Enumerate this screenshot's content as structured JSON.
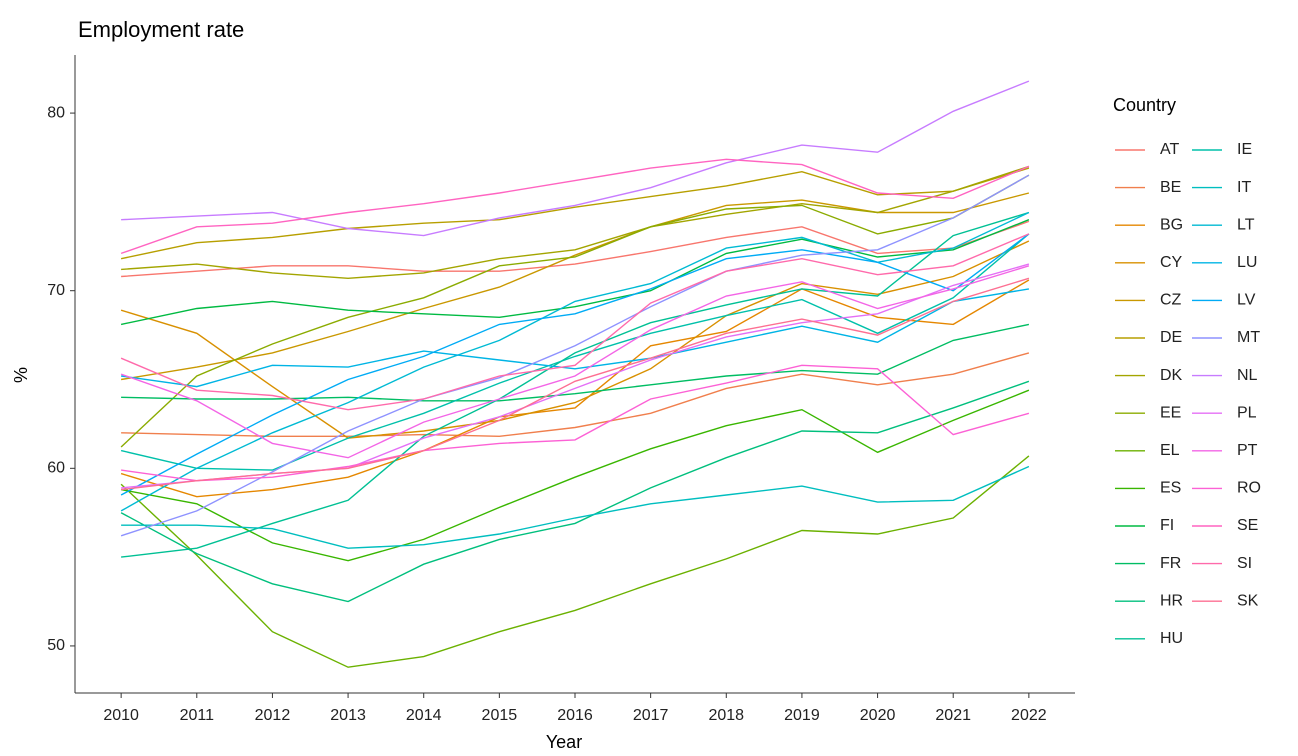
{
  "chart_data": {
    "type": "line",
    "title": "Employment rate",
    "x_label": "Year",
    "y_label": "%",
    "legend_title": "Country",
    "x": [
      2010,
      2011,
      2012,
      2013,
      2014,
      2015,
      2016,
      2017,
      2018,
      2019,
      2020,
      2021,
      2022
    ],
    "xlim": [
      2009.39,
      2022.61
    ],
    "xticks": [
      2010,
      2011,
      2012,
      2013,
      2014,
      2015,
      2016,
      2017,
      2018,
      2019,
      2020,
      2021,
      2022
    ],
    "ylim": [
      47.35,
      83.27
    ],
    "yticks": [
      50,
      60,
      70,
      80
    ],
    "series": [
      {
        "name": "AT",
        "color": "#F8766D",
        "values": [
          70.8,
          71.1,
          71.4,
          71.4,
          71.1,
          71.1,
          71.5,
          72.2,
          73.0,
          73.6,
          72.1,
          72.4,
          73.9
        ]
      },
      {
        "name": "BE",
        "color": "#F07F4D",
        "values": [
          62.0,
          61.9,
          61.8,
          61.8,
          61.9,
          61.8,
          62.3,
          63.1,
          64.5,
          65.3,
          64.7,
          65.3,
          66.5
        ]
      },
      {
        "name": "BG",
        "color": "#E58700",
        "values": [
          59.7,
          58.4,
          58.8,
          59.5,
          61.0,
          62.9,
          63.4,
          66.9,
          67.7,
          70.1,
          68.5,
          68.1,
          70.6
        ]
      },
      {
        "name": "CY",
        "color": "#D89000",
        "values": [
          68.9,
          67.6,
          64.6,
          61.7,
          62.1,
          62.7,
          63.7,
          65.6,
          68.6,
          70.4,
          69.8,
          70.8,
          72.8
        ]
      },
      {
        "name": "CZ",
        "color": "#C99800",
        "values": [
          65.0,
          65.7,
          66.5,
          67.7,
          69.0,
          70.2,
          72.0,
          73.6,
          74.8,
          75.1,
          74.4,
          74.4,
          75.5
        ]
      },
      {
        "name": "DE",
        "color": "#B79F00",
        "values": [
          71.8,
          72.7,
          73.0,
          73.5,
          73.8,
          74.0,
          74.7,
          75.3,
          75.9,
          76.7,
          75.4,
          75.6,
          76.9
        ]
      },
      {
        "name": "DK",
        "color": "#A3A500",
        "values": [
          71.2,
          71.5,
          71.0,
          70.7,
          71.0,
          71.8,
          72.3,
          73.6,
          74.3,
          74.9,
          74.4,
          75.6,
          77.0
        ]
      },
      {
        "name": "EE",
        "color": "#8BAB00",
        "values": [
          61.2,
          65.2,
          67.0,
          68.5,
          69.6,
          71.4,
          71.9,
          73.6,
          74.6,
          74.8,
          73.2,
          74.1,
          76.5
        ]
      },
      {
        "name": "EL",
        "color": "#6BB100",
        "values": [
          59.1,
          55.1,
          50.8,
          48.8,
          49.4,
          50.8,
          52.0,
          53.5,
          54.9,
          56.5,
          56.3,
          57.2,
          60.7
        ]
      },
      {
        "name": "ES",
        "color": "#39B600",
        "values": [
          58.8,
          58.0,
          55.8,
          54.8,
          56.0,
          57.8,
          59.5,
          61.1,
          62.4,
          63.3,
          60.9,
          62.7,
          64.4
        ]
      },
      {
        "name": "FI",
        "color": "#00BA42",
        "values": [
          68.1,
          69.0,
          69.4,
          68.9,
          68.7,
          68.5,
          69.1,
          70.0,
          72.1,
          72.9,
          71.9,
          72.3,
          74.0
        ]
      },
      {
        "name": "FR",
        "color": "#00BD63",
        "values": [
          64.0,
          63.9,
          63.9,
          64.0,
          63.8,
          63.8,
          64.2,
          64.7,
          65.2,
          65.5,
          65.3,
          67.2,
          68.1
        ]
      },
      {
        "name": "HR",
        "color": "#00BF7D",
        "values": [
          57.5,
          55.2,
          53.5,
          52.5,
          54.6,
          56.0,
          56.9,
          58.9,
          60.6,
          62.1,
          62.0,
          63.4,
          64.9
        ]
      },
      {
        "name": "HU",
        "color": "#00C094",
        "values": [
          55.0,
          55.5,
          56.9,
          58.2,
          61.8,
          63.9,
          66.5,
          68.2,
          69.2,
          70.1,
          69.7,
          73.1,
          74.4
        ]
      },
      {
        "name": "IE",
        "color": "#00C0AA",
        "values": [
          61.0,
          60.0,
          59.9,
          61.7,
          63.1,
          64.8,
          66.3,
          67.6,
          68.6,
          69.5,
          67.6,
          69.6,
          73.2
        ]
      },
      {
        "name": "IT",
        "color": "#00BEBF",
        "values": [
          56.8,
          56.8,
          56.6,
          55.5,
          55.7,
          56.3,
          57.2,
          58.0,
          58.5,
          59.0,
          58.1,
          58.2,
          60.1
        ]
      },
      {
        "name": "LT",
        "color": "#00BAD3",
        "values": [
          57.6,
          60.0,
          62.0,
          63.7,
          65.7,
          67.2,
          69.4,
          70.4,
          72.4,
          73.0,
          71.6,
          72.4,
          74.4
        ]
      },
      {
        "name": "LU",
        "color": "#00B4E5",
        "values": [
          65.2,
          64.6,
          65.8,
          65.7,
          66.6,
          66.1,
          65.6,
          66.2,
          67.1,
          68.0,
          67.1,
          69.4,
          70.1
        ]
      },
      {
        "name": "LV",
        "color": "#00ABF5",
        "values": [
          58.5,
          60.8,
          63.0,
          65.0,
          66.3,
          68.1,
          68.7,
          70.1,
          71.8,
          72.3,
          71.6,
          70.0,
          73.2
        ]
      },
      {
        "name": "MT",
        "color": "#8E92FF",
        "values": [
          56.2,
          57.6,
          59.8,
          62.1,
          63.9,
          65.1,
          66.9,
          69.1,
          71.1,
          72.0,
          72.3,
          74.1,
          76.5
        ]
      },
      {
        "name": "NL",
        "color": "#C77CFF",
        "values": [
          74.0,
          74.2,
          74.4,
          73.5,
          73.1,
          74.1,
          74.8,
          75.8,
          77.2,
          78.2,
          77.8,
          80.1,
          81.8
        ]
      },
      {
        "name": "PL",
        "color": "#E46FF6",
        "values": [
          58.9,
          59.3,
          59.7,
          60.0,
          61.7,
          62.9,
          64.5,
          66.1,
          67.4,
          68.2,
          68.7,
          70.3,
          71.5
        ]
      },
      {
        "name": "PT",
        "color": "#F365E6",
        "values": [
          65.3,
          63.8,
          61.4,
          60.6,
          62.6,
          63.9,
          65.2,
          67.8,
          69.7,
          70.5,
          69.0,
          70.1,
          71.4
        ]
      },
      {
        "name": "RO",
        "color": "#FC61D5",
        "values": [
          59.9,
          59.3,
          59.5,
          60.1,
          61.0,
          61.4,
          61.6,
          63.9,
          64.8,
          65.8,
          65.6,
          61.9,
          63.1
        ]
      },
      {
        "name": "SE",
        "color": "#FF64C1",
        "values": [
          72.1,
          73.6,
          73.8,
          74.4,
          74.9,
          75.5,
          76.2,
          76.9,
          77.4,
          77.1,
          75.5,
          75.2,
          77.0
        ]
      },
      {
        "name": "SI",
        "color": "#FF6AAB",
        "values": [
          66.2,
          64.4,
          64.1,
          63.3,
          63.9,
          65.2,
          65.8,
          69.3,
          71.1,
          71.8,
          70.9,
          71.4,
          73.2
        ]
      },
      {
        "name": "SK",
        "color": "#FD6F92",
        "values": [
          58.8,
          59.3,
          59.7,
          60.0,
          61.0,
          62.7,
          64.9,
          66.2,
          67.6,
          68.4,
          67.5,
          69.4,
          70.7
        ]
      }
    ]
  }
}
